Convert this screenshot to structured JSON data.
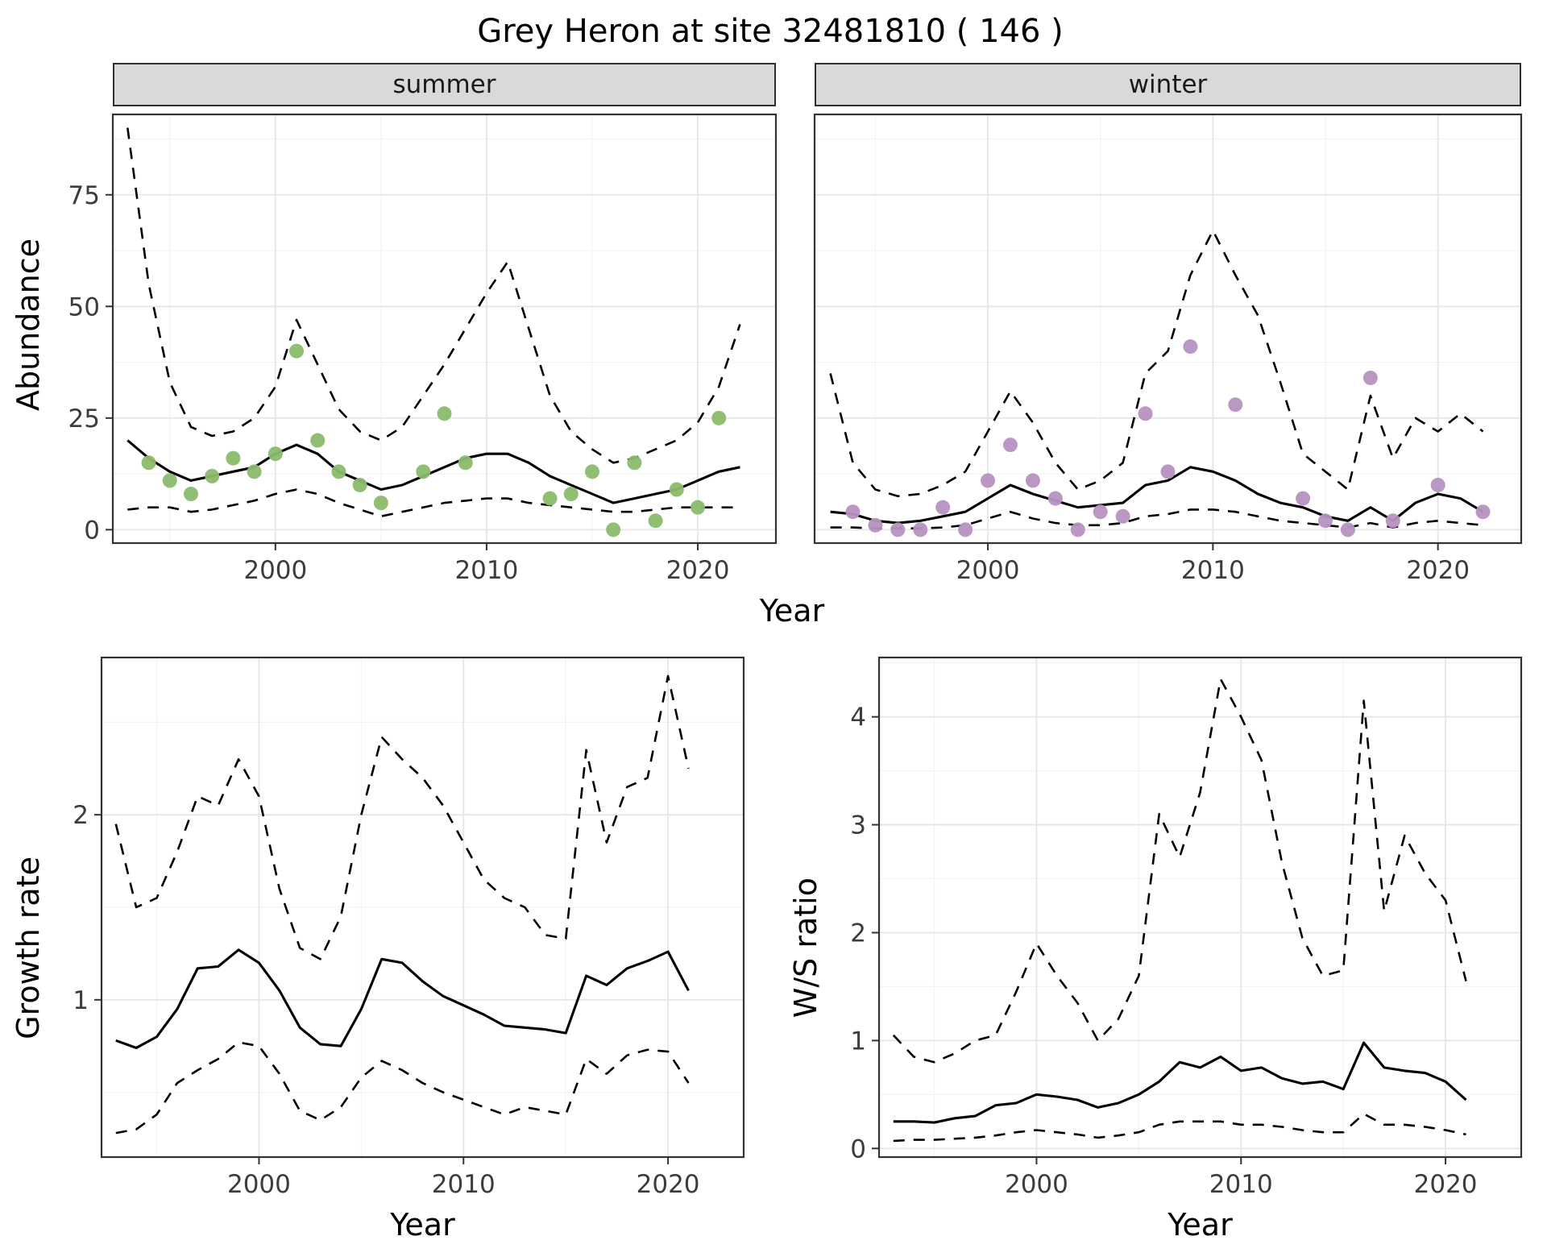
{
  "title": "Grey Heron at site 32481810 ( 146 )",
  "top": {
    "ylabel": "Abundance",
    "xlabel": "Year"
  },
  "colors": {
    "line": "#000000",
    "grid_major": "#e6e6e6",
    "grid_minor": "#f3f3f3",
    "panel_border": "#333333",
    "tick_text": "#3c3c3c",
    "strip_bg": "#d9d9d9",
    "summer_points": "#8aba6b",
    "winter_points": "#b791c1"
  },
  "chart_data": [
    {
      "type": "line",
      "name": "summer-abundance",
      "facet_label": "summer",
      "xlabel": "Year",
      "ylabel": "Abundance",
      "xlim": [
        1992.3,
        2023.7
      ],
      "ylim": [
        -3,
        93
      ],
      "xticks": [
        2000,
        2010,
        2020
      ],
      "yticks": [
        0,
        25,
        50,
        75
      ],
      "show_y_labels": true,
      "series": [
        {
          "name": "upper-ci",
          "type": "line",
          "dashed": true,
          "x": [
            1993,
            1994,
            1995,
            1996,
            1997,
            1998,
            1999,
            2000,
            2001,
            2002,
            2003,
            2004,
            2005,
            2006,
            2007,
            2008,
            2009,
            2010,
            2011,
            2012,
            2013,
            2014,
            2015,
            2016,
            2017,
            2018,
            2019,
            2020,
            2021,
            2022
          ],
          "y": [
            90,
            55,
            33,
            23,
            21,
            22,
            25,
            32,
            47,
            37,
            27,
            22,
            20,
            23,
            30,
            37,
            45,
            53,
            60,
            45,
            30,
            22,
            18,
            15,
            16,
            18,
            20,
            24,
            32,
            46
          ]
        },
        {
          "name": "median",
          "type": "line",
          "dashed": false,
          "x": [
            1993,
            1994,
            1995,
            1996,
            1997,
            1998,
            1999,
            2000,
            2001,
            2002,
            2003,
            2004,
            2005,
            2006,
            2007,
            2008,
            2009,
            2010,
            2011,
            2012,
            2013,
            2014,
            2015,
            2016,
            2017,
            2018,
            2019,
            2020,
            2021,
            2022
          ],
          "y": [
            20,
            16,
            13,
            11,
            12,
            13,
            14,
            17,
            19,
            17,
            13,
            11,
            9,
            10,
            12,
            14,
            16,
            17,
            17,
            15,
            12,
            10,
            8,
            6,
            7,
            8,
            9,
            11,
            13,
            14
          ]
        },
        {
          "name": "lower-ci",
          "type": "line",
          "dashed": true,
          "x": [
            1993,
            1994,
            1995,
            1996,
            1997,
            1998,
            1999,
            2000,
            2001,
            2002,
            2003,
            2004,
            2005,
            2006,
            2007,
            2008,
            2009,
            2010,
            2011,
            2012,
            2013,
            2014,
            2015,
            2016,
            2017,
            2018,
            2019,
            2020,
            2021,
            2022
          ],
          "y": [
            4.5,
            5,
            5,
            4,
            4.5,
            5.5,
            6.5,
            8,
            9,
            8,
            6,
            4.5,
            3,
            4,
            5,
            6,
            6.5,
            7,
            7,
            6,
            5.5,
            5,
            4.5,
            4,
            4,
            4.5,
            5,
            5,
            5,
            5
          ]
        },
        {
          "name": "observed-counts",
          "type": "points",
          "color": "#8aba6b",
          "x": [
            1994,
            1995,
            1996,
            1997,
            1998,
            1999,
            2000,
            2001,
            2002,
            2003,
            2004,
            2005,
            2007,
            2008,
            2009,
            2013,
            2014,
            2015,
            2016,
            2017,
            2018,
            2019,
            2020,
            2021
          ],
          "y": [
            15,
            11,
            8,
            12,
            16,
            13,
            17,
            40,
            20,
            13,
            10,
            6,
            13,
            26,
            15,
            7,
            8,
            13,
            0,
            15,
            2,
            9,
            5,
            25
          ]
        }
      ]
    },
    {
      "type": "line",
      "name": "winter-abundance",
      "facet_label": "winter",
      "xlabel": "Year",
      "ylabel": "Abundance",
      "xlim": [
        1992.3,
        2023.7
      ],
      "ylim": [
        -3,
        93
      ],
      "xticks": [
        2000,
        2010,
        2020
      ],
      "yticks": [
        0,
        25,
        50,
        75
      ],
      "show_y_labels": false,
      "series": [
        {
          "name": "upper-ci",
          "type": "line",
          "dashed": true,
          "x": [
            1993,
            1994,
            1995,
            1996,
            1997,
            1998,
            1999,
            2000,
            2001,
            2002,
            2003,
            2004,
            2005,
            2006,
            2007,
            2008,
            2009,
            2010,
            2011,
            2012,
            2013,
            2014,
            2015,
            2016,
            2017,
            2018,
            2019,
            2020,
            2021,
            2022
          ],
          "y": [
            35,
            15,
            9,
            7.5,
            8,
            10,
            13,
            22,
            31,
            24,
            15,
            9,
            11,
            15,
            35,
            40,
            57,
            67,
            57,
            48,
            33,
            17,
            13,
            9,
            30,
            16,
            25,
            22,
            26,
            22
          ]
        },
        {
          "name": "median",
          "type": "line",
          "dashed": false,
          "x": [
            1993,
            1994,
            1995,
            1996,
            1997,
            1998,
            1999,
            2000,
            2001,
            2002,
            2003,
            2004,
            2005,
            2006,
            2007,
            2008,
            2009,
            2010,
            2011,
            2012,
            2013,
            2014,
            2015,
            2016,
            2017,
            2018,
            2019,
            2020,
            2021,
            2022
          ],
          "y": [
            4,
            3.5,
            2,
            1.5,
            2,
            3,
            4,
            7,
            10,
            8,
            6.5,
            5,
            5.5,
            6,
            10,
            11,
            14,
            13,
            11,
            8,
            6,
            5,
            3,
            2,
            5,
            2,
            6,
            8,
            7,
            4
          ]
        },
        {
          "name": "lower-ci",
          "type": "line",
          "dashed": true,
          "x": [
            1993,
            1994,
            1995,
            1996,
            1997,
            1998,
            1999,
            2000,
            2001,
            2002,
            2003,
            2004,
            2005,
            2006,
            2007,
            2008,
            2009,
            2010,
            2011,
            2012,
            2013,
            2014,
            2015,
            2016,
            2017,
            2018,
            2019,
            2020,
            2021,
            2022
          ],
          "y": [
            0.5,
            0.5,
            0.3,
            0.3,
            0.3,
            0.5,
            1,
            2.5,
            4,
            2.5,
            1.5,
            1,
            1,
            1.5,
            3,
            3.5,
            4.5,
            4.5,
            4,
            3,
            2,
            1.5,
            1,
            0.5,
            1.5,
            0.5,
            1.5,
            2,
            1.5,
            1
          ]
        },
        {
          "name": "observed-counts",
          "type": "points",
          "color": "#b791c1",
          "x": [
            1994,
            1995,
            1996,
            1997,
            1998,
            1999,
            2000,
            2001,
            2002,
            2003,
            2004,
            2005,
            2006,
            2007,
            2008,
            2009,
            2011,
            2014,
            2015,
            2016,
            2017,
            2018,
            2020,
            2022
          ],
          "y": [
            4,
            1,
            0,
            0,
            5,
            0,
            11,
            19,
            11,
            7,
            0,
            4,
            3,
            26,
            13,
            41,
            28,
            7,
            2,
            0,
            34,
            2,
            10,
            4
          ]
        }
      ]
    },
    {
      "type": "line",
      "name": "growth-rate",
      "facet_label": "",
      "xlabel": "Year",
      "ylabel": "Growth rate",
      "xlim": [
        1992.3,
        2023.7
      ],
      "ylim": [
        0.15,
        2.85
      ],
      "xticks": [
        2000,
        2010,
        2020
      ],
      "yticks": [
        1,
        2
      ],
      "show_y_labels": true,
      "series": [
        {
          "name": "upper-ci",
          "type": "line",
          "dashed": true,
          "x": [
            1993,
            1994,
            1995,
            1996,
            1997,
            1998,
            1999,
            2000,
            2001,
            2002,
            2003,
            2004,
            2005,
            2006,
            2007,
            2008,
            2009,
            2010,
            2011,
            2012,
            2013,
            2014,
            2015,
            2016,
            2017,
            2018,
            2019,
            2020,
            2021
          ],
          "y": [
            1.95,
            1.5,
            1.55,
            1.8,
            2.1,
            2.05,
            2.3,
            2.1,
            1.6,
            1.28,
            1.22,
            1.45,
            2.0,
            2.42,
            2.3,
            2.2,
            2.05,
            1.85,
            1.65,
            1.55,
            1.5,
            1.35,
            1.33,
            2.35,
            1.85,
            2.15,
            2.2,
            2.75,
            2.25
          ]
        },
        {
          "name": "median",
          "type": "line",
          "dashed": false,
          "x": [
            1993,
            1994,
            1995,
            1996,
            1997,
            1998,
            1999,
            2000,
            2001,
            2002,
            2003,
            2004,
            2005,
            2006,
            2007,
            2008,
            2009,
            2010,
            2011,
            2012,
            2013,
            2014,
            2015,
            2016,
            2017,
            2018,
            2019,
            2020,
            2021
          ],
          "y": [
            0.78,
            0.74,
            0.8,
            0.95,
            1.17,
            1.18,
            1.27,
            1.2,
            1.05,
            0.85,
            0.76,
            0.75,
            0.95,
            1.22,
            1.2,
            1.1,
            1.02,
            0.97,
            0.92,
            0.86,
            0.85,
            0.84,
            0.82,
            1.13,
            1.08,
            1.17,
            1.21,
            1.26,
            1.05
          ]
        },
        {
          "name": "lower-ci",
          "type": "line",
          "dashed": true,
          "x": [
            1993,
            1994,
            1995,
            1996,
            1997,
            1998,
            1999,
            2000,
            2001,
            2002,
            2003,
            2004,
            2005,
            2006,
            2007,
            2008,
            2009,
            2010,
            2011,
            2012,
            2013,
            2014,
            2015,
            2016,
            2017,
            2018,
            2019,
            2020,
            2021
          ],
          "y": [
            0.28,
            0.3,
            0.38,
            0.55,
            0.62,
            0.68,
            0.77,
            0.75,
            0.6,
            0.4,
            0.35,
            0.42,
            0.58,
            0.67,
            0.62,
            0.55,
            0.5,
            0.46,
            0.42,
            0.38,
            0.42,
            0.4,
            0.38,
            0.68,
            0.6,
            0.7,
            0.73,
            0.72,
            0.55
          ]
        }
      ]
    },
    {
      "type": "line",
      "name": "ws-ratio",
      "facet_label": "",
      "xlabel": "Year",
      "ylabel": "W/S ratio",
      "xlim": [
        1992.3,
        2023.7
      ],
      "ylim": [
        -0.08,
        4.55
      ],
      "xticks": [
        2000,
        2010,
        2020
      ],
      "yticks": [
        0,
        1,
        2,
        3,
        4
      ],
      "show_y_labels": true,
      "series": [
        {
          "name": "upper-ci",
          "type": "line",
          "dashed": true,
          "x": [
            1993,
            1994,
            1995,
            1996,
            1997,
            1998,
            1999,
            2000,
            2001,
            2002,
            2003,
            2004,
            2005,
            2006,
            2007,
            2008,
            2009,
            2010,
            2011,
            2012,
            2013,
            2014,
            2015,
            2016,
            2017,
            2018,
            2019,
            2020,
            2021
          ],
          "y": [
            1.05,
            0.85,
            0.8,
            0.88,
            1.0,
            1.05,
            1.45,
            1.9,
            1.6,
            1.35,
            1.0,
            1.2,
            1.6,
            3.1,
            2.7,
            3.3,
            4.35,
            4.0,
            3.6,
            2.65,
            1.95,
            1.6,
            1.65,
            4.15,
            2.2,
            2.9,
            2.55,
            2.3,
            1.55
          ]
        },
        {
          "name": "median",
          "type": "line",
          "dashed": false,
          "x": [
            1993,
            1994,
            1995,
            1996,
            1997,
            1998,
            1999,
            2000,
            2001,
            2002,
            2003,
            2004,
            2005,
            2006,
            2007,
            2008,
            2009,
            2010,
            2011,
            2012,
            2013,
            2014,
            2015,
            2016,
            2017,
            2018,
            2019,
            2020,
            2021
          ],
          "y": [
            0.25,
            0.25,
            0.24,
            0.28,
            0.3,
            0.4,
            0.42,
            0.5,
            0.48,
            0.45,
            0.38,
            0.42,
            0.5,
            0.62,
            0.8,
            0.75,
            0.85,
            0.72,
            0.75,
            0.65,
            0.6,
            0.62,
            0.55,
            0.98,
            0.75,
            0.72,
            0.7,
            0.62,
            0.45
          ]
        },
        {
          "name": "lower-ci",
          "type": "line",
          "dashed": true,
          "x": [
            1993,
            1994,
            1995,
            1996,
            1997,
            1998,
            1999,
            2000,
            2001,
            2002,
            2003,
            2004,
            2005,
            2006,
            2007,
            2008,
            2009,
            2010,
            2011,
            2012,
            2013,
            2014,
            2015,
            2016,
            2017,
            2018,
            2019,
            2020,
            2021
          ],
          "y": [
            0.07,
            0.08,
            0.08,
            0.09,
            0.1,
            0.12,
            0.15,
            0.17,
            0.15,
            0.13,
            0.1,
            0.12,
            0.15,
            0.22,
            0.25,
            0.25,
            0.25,
            0.22,
            0.22,
            0.2,
            0.17,
            0.15,
            0.15,
            0.32,
            0.22,
            0.22,
            0.2,
            0.17,
            0.13
          ]
        }
      ]
    }
  ]
}
